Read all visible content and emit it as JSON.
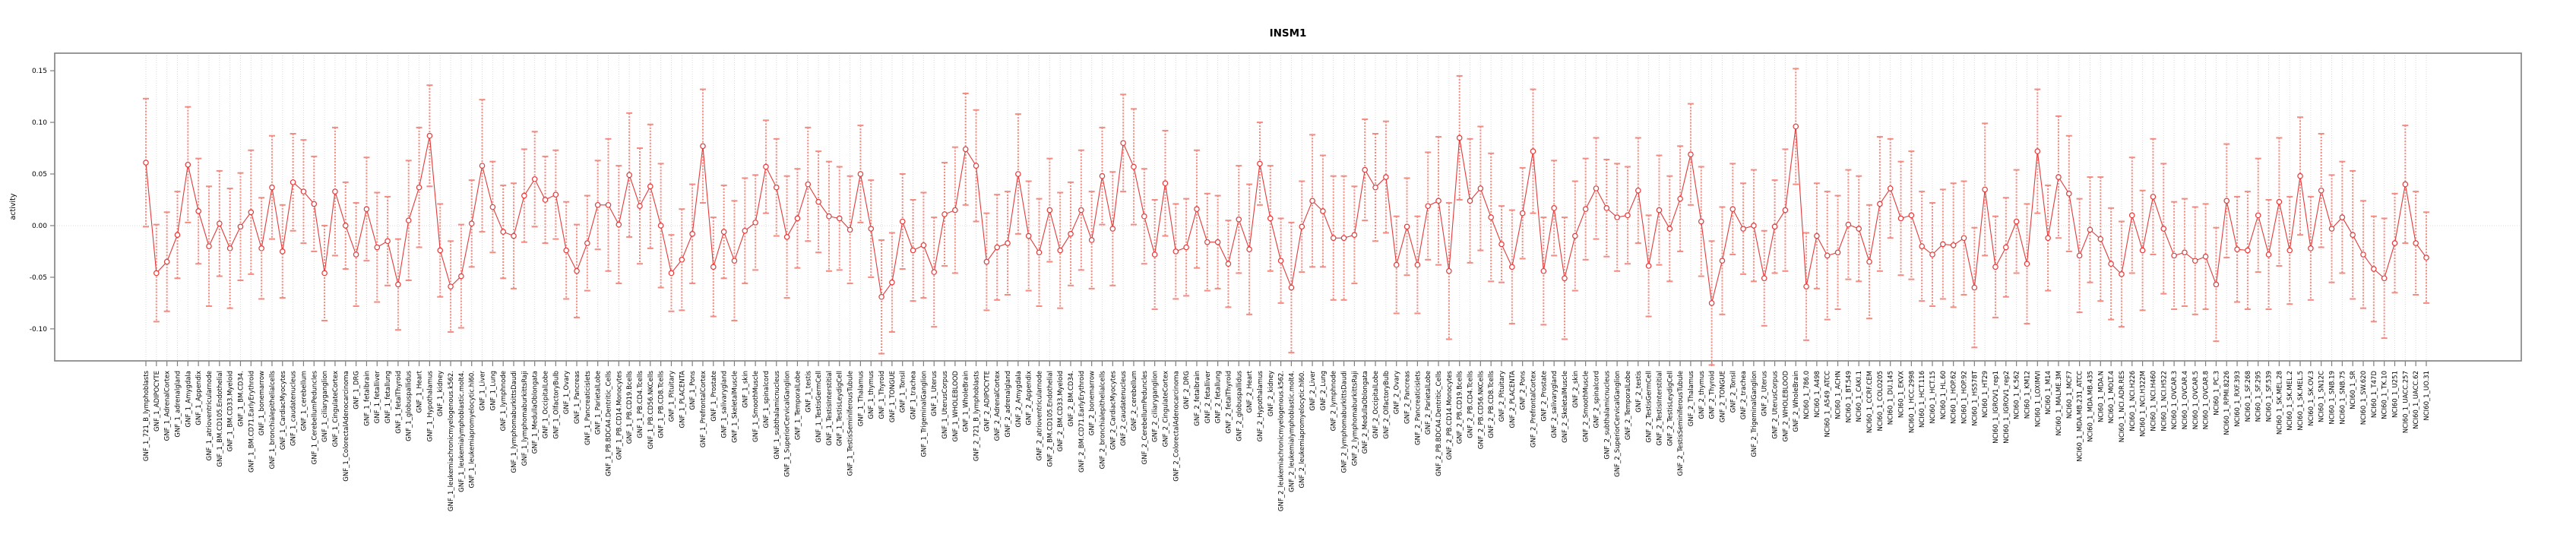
{
  "title": "INSM1",
  "ylabel": "activity",
  "chart_data": {
    "type": "line",
    "title": "INSM1",
    "xlabel": "",
    "ylabel": "activity",
    "ylim": [
      -0.131,
      0.167
    ],
    "yticks": [
      -0.1,
      -0.05,
      0.0,
      0.05,
      0.1,
      0.15
    ],
    "grid": "dotted vertical gridline at every category; dotted horizontal line at y=0",
    "legend": "none",
    "marker": "open-circle",
    "error_bars": true,
    "colors": {
      "point": "#e23b3b",
      "line": "#e8474040",
      "error_bar": "#f28b82",
      "grid": "#d9d9d9",
      "box": "#7f7f7f",
      "text": "#000000"
    },
    "categories": [
      "GNF_1_721_B_lymphoblasts",
      "GNF_1_ADIPOCYTE",
      "GNF_1_AdrenalCortex",
      "GNF_1_adrenalgland",
      "GNF_1_Amygdala",
      "GNF_1_Appendix",
      "GNF_1_atrioventricularnode",
      "GNF_1_BM.CD105.Endothelial",
      "GNF_1_BM.CD33.Myeloid",
      "GNF_1_BM.CD34.",
      "GNF_1_BM.CD71.EarlyErythroid",
      "GNF_1_bonemarrow",
      "GNF_1_bronchialepithelialcells",
      "GNF_1_CardiacMyocytes",
      "GNF_1_caudatenucleus",
      "GNF_1_cerebellum",
      "GNF_1_CerebellumPeduncles",
      "GNF_1_ciliaryganglion",
      "GNF_1_CingulateCortex",
      "GNF_1_ColorectalAdenocarcinoma",
      "GNF_1_DRG",
      "GNF_1_fetalbrain",
      "GNF_1_fetalliver",
      "GNF_1_fetallung",
      "GNF_1_fetalThyroid",
      "GNF_1_globuspallidus",
      "GNF_1_Heart",
      "GNF_1_Hypothalamus",
      "GNF_1_kidney",
      "GNF_1_leukemiachronicmyelogenous.k562.",
      "GNF_1_leukemialymphoblastic.molt4.",
      "GNF_1_leukemiapromyelocytic.hl60.",
      "GNF_1_Liver",
      "GNF_1_Lung",
      "GNF_1_lymphnode",
      "GNF_1_lymphomaburkittsDaudi",
      "GNF_1_lymphomaburkittsRaji",
      "GNF_1_MedullaOblongata",
      "GNF_1_OccipitalLobe",
      "GNF_1_OlfactoryBulb",
      "GNF_1_Ovary",
      "GNF_1_Pancreas",
      "GNF_1_Pancreaticislets",
      "GNF_1_ParietalLobe",
      "GNF_1_PB.BDCA4.Dentritic_Cells",
      "GNF_1_PB.CD14.Monocytes",
      "GNF_1_PB.CD19.Bcells",
      "GNF_1_PB.CD4.Tcells",
      "GNF_1_PB.CD56.NKCells",
      "GNF_1_PB.CD8.Tcells",
      "GNF_1_Pituitary",
      "GNF_1_PLACENTA",
      "GNF_1_Pons",
      "GNF_1_PrefrontalCortex",
      "GNF_1_Prostate",
      "GNF_1_salivarygland",
      "GNF_1_SkeletalMuscle",
      "GNF_1_skin",
      "GNF_1_SmoothMuscle",
      "GNF_1_spinalcord",
      "GNF_1_subthalamicnucleus",
      "GNF_1_SuperiorCervicalGanglion",
      "GNF_1_TemporalLobe",
      "GNF_1_testis",
      "GNF_1_TestisGermCell",
      "GNF_1_TestisInterstitial",
      "GNF_1_TestisLeydigCell",
      "GNF_1_TestisSeminiferousTubule",
      "GNF_1_Thalamus",
      "GNF_1_thymus",
      "GNF_1_Thyroid",
      "GNF_1_TONGUE",
      "GNF_1_Tonsil",
      "GNF_1_trachea",
      "GNF_1_TrigeminalGanglion",
      "GNF_1_Uterus",
      "GNF_1_UterusCorpus",
      "GNF_1_WHOLEBLOOD",
      "GNF_1_WholeBrain",
      "GNF_2_721_B_lymphoblasts",
      "GNF_2_ADIPOCYTE",
      "GNF_2_AdrenalCortex",
      "GNF_2_adrenalgland",
      "GNF_2_Amygdala",
      "GNF_2_Appendix",
      "GNF_2_atrioventricularnode",
      "GNF_2_BM.CD105.Endothelial",
      "GNF_2_BM.CD33.Myeloid",
      "GNF_2_BM.CD34.",
      "GNF_2_BM.CD71.EarlyErythroid",
      "GNF_2_bonemarrow",
      "GNF_2_bronchialepithelialcells",
      "GNF_2_CardiacMyocytes",
      "GNF_2_caudatenucleus",
      "GNF_2_cerebellum",
      "GNF_2_CerebellumPeduncles",
      "GNF_2_ciliaryganglion",
      "GNF_2_CingulateCortex",
      "GNF_2_ColorectalAdenocarcinoma",
      "GNF_2_DRG",
      "GNF_2_fetalbrain",
      "GNF_2_fetalliver",
      "GNF_2_fetallung",
      "GNF_2_fetalThyroid",
      "GNF_2_globuspallidus",
      "GNF_2_Heart",
      "GNF_2_Hypothalamus",
      "GNF_2_kidney",
      "GNF_2_leukemiachronicmyelogenous.k562.",
      "GNF_2_leukemialymphoblastic.molt4.",
      "GNF_2_leukemiapromyelocytic.hl60.",
      "GNF_2_Liver",
      "GNF_2_Lung",
      "GNF_2_lymphnode",
      "GNF_2_lymphomaburkittsDaudi",
      "GNF_2_lymphomaburkittsRaji",
      "GNF_2_MedullaOblongata",
      "GNF_2_OccipitalLobe",
      "GNF_2_OlfactoryBulb",
      "GNF_2_Ovary",
      "GNF_2_Pancreas",
      "GNF_2_Pancreaticislets",
      "GNF_2_ParietalLobe",
      "GNF_2_PB.BDCA4.Dentritic_Cells",
      "GNF_2_PB.CD14.Monocytes",
      "GNF_2_PB.CD19.Bcells",
      "GNF_2_PB.CD4.Tcells",
      "GNF_2_PB.CD56.NKCells",
      "GNF_2_PB.CD8.Tcells",
      "GNF_2_Pituitary",
      "GNF_2_PLACENTA",
      "GNF_2_Pons",
      "GNF_2_PrefrontalCortex",
      "GNF_2_Prostate",
      "GNF_2_salivarygland",
      "GNF_2_SkeletalMuscle",
      "GNF_2_skin",
      "GNF_2_SmoothMuscle",
      "GNF_2_spinalcord",
      "GNF_2_subthalamicnucleus",
      "GNF_2_SuperiorCervicalGanglion",
      "GNF_2_TemporalLobe",
      "GNF_2_testis",
      "GNF_2_TestisGermCell",
      "GNF_2_TestisInterstitial",
      "GNF_2_TestisLeydigCell",
      "GNF_2_TestisSeminiferousTubule",
      "GNF_2_Thalamus",
      "GNF_2_thymus",
      "GNF_2_Thyroid",
      "GNF_2_TONGUE",
      "GNF_2_Tonsil",
      "GNF_2_trachea",
      "GNF_2_TrigeminalGanglion",
      "GNF_2_Uterus",
      "GNF_2_UterusCorpus",
      "GNF_2_WHOLEBLOOD",
      "GNF_2_WholeBrain",
      "NCI60_1_786.0",
      "NCI60_1_A498",
      "NCI60_1_A549_ATCC",
      "NCI60_1_ACHN",
      "NCI60_1_BT.549",
      "NCI60_1_CAKI.1",
      "NCI60_1_CCRF.CEM",
      "NCI60_1_COLO205",
      "NCI60_1_DU.145",
      "NCI60_1_EKVX",
      "NCI60_1_HCC.2998",
      "NCI60_1_HCT.116",
      "NCI60_1_HCT.15",
      "NCI60_1_HL.60",
      "NCI60_1_HOP.62",
      "NCI60_1_HOP.92",
      "NCI60_1_HS578T",
      "NCI60_1_HT29",
      "NCI60_1_IGROV1_rep1",
      "NCI60_1_IGROV1_rep2",
      "NCI60_1_K.562",
      "NCI60_1_KM12",
      "NCI60_1_LOXIMVI",
      "NCI60_1_M14",
      "NCI60_1_MALME.3M",
      "NCI60_1_MCF7",
      "NCI60_1_MDA.MB.231_ATCC",
      "NCI60_1_MDA.MB.435",
      "NCI60_1_MDA.N",
      "NCI60_1_MOLT.4",
      "NCI60_1_NCI.ADR.RES",
      "NCI60_1_NCI.H226",
      "NCI60_1_NCI.H322M",
      "NCI60_1_NCI.H460",
      "NCI60_1_NCI.H522",
      "NCI60_1_OVCAR.3",
      "NCI60_1_OVCAR.4",
      "NCI60_1_OVCAR.5",
      "NCI60_1_OVCAR.8",
      "NCI60_1_PC.3",
      "NCI60_1_RPMI.8226",
      "NCI60_1_RXF.393",
      "NCI60_1_SF.268",
      "NCI60_1_SF.295",
      "NCI60_1_SF.539",
      "NCI60_1_SK.MEL.28",
      "NCI60_1_SK.MEL.2",
      "NCI60_1_SK.MEL.5",
      "NCI60_1_SK.OV.3",
      "NCI60_1_SN12C",
      "NCI60_1_SNB.19",
      "NCI60_1_SNB.75",
      "NCI60_1_SR",
      "NCI60_1_SW.620",
      "NCI60_1_T47D",
      "NCI60_1_TK.10",
      "NCI60_1_U251",
      "NCI60_1_UACC.257",
      "NCI60_1_UACC.62",
      "NCI60_1_UO.31"
    ],
    "values": [
      0.061,
      -0.046,
      -0.035,
      -0.009,
      0.059,
      0.014,
      -0.02,
      0.002,
      -0.022,
      -0.001,
      0.013,
      -0.022,
      0.037,
      -0.025,
      0.042,
      0.033,
      0.021,
      -0.046,
      0.033,
      0.0,
      -0.028,
      0.016,
      -0.021,
      -0.015,
      -0.057,
      0.005,
      0.037,
      0.087,
      -0.024,
      -0.059,
      -0.049,
      0.002,
      0.058,
      0.018,
      -0.006,
      -0.01,
      0.029,
      0.045,
      0.025,
      0.03,
      -0.024,
      -0.044,
      -0.017,
      0.02,
      0.02,
      0.001,
      0.049,
      0.019,
      0.038,
      0.0,
      -0.046,
      -0.033,
      -0.008,
      0.077,
      -0.04,
      -0.006,
      -0.034,
      -0.005,
      0.003,
      0.057,
      0.037,
      -0.011,
      0.007,
      0.04,
      0.023,
      0.009,
      0.007,
      -0.004,
      0.05,
      -0.003,
      -0.069,
      -0.055,
      0.004,
      -0.024,
      -0.019,
      -0.045,
      0.011,
      0.015,
      0.074,
      0.058,
      -0.035,
      -0.021,
      -0.017,
      0.05,
      -0.01,
      -0.026,
      0.015,
      -0.024,
      -0.008,
      0.015,
      -0.014,
      0.048,
      -0.003,
      0.08,
      0.057,
      0.009,
      -0.028,
      0.041,
      -0.025,
      -0.021,
      0.016,
      -0.016,
      -0.016,
      -0.037,
      0.006,
      -0.023,
      0.06,
      0.007,
      -0.034,
      -0.06,
      -0.001,
      0.024,
      0.014,
      -0.012,
      -0.012,
      -0.009,
      0.054,
      0.037,
      0.047,
      -0.038,
      -0.001,
      -0.038,
      0.019,
      0.024,
      -0.044,
      0.085,
      0.024,
      0.036,
      0.008,
      -0.018,
      -0.04,
      0.012,
      0.072,
      -0.044,
      0.017,
      -0.051,
      -0.01,
      0.016,
      0.036,
      0.017,
      0.008,
      0.01,
      0.034,
      -0.039,
      0.015,
      -0.003,
      0.026,
      0.069,
      0.004,
      -0.075,
      -0.034,
      0.016,
      -0.003,
      0.0,
      -0.051,
      -0.001,
      0.015,
      0.096,
      -0.059,
      -0.01,
      -0.029,
      -0.026,
      0.001,
      -0.003,
      -0.035,
      0.021,
      0.036,
      0.007,
      0.01,
      -0.02,
      -0.028,
      -0.018,
      -0.019,
      -0.012,
      -0.06,
      0.035,
      -0.04,
      -0.021,
      0.004,
      -0.037,
      0.072,
      -0.012,
      0.047,
      0.031,
      -0.029,
      -0.004,
      -0.013,
      -0.037,
      -0.047,
      0.01,
      -0.024,
      0.028,
      -0.003,
      -0.029,
      -0.026,
      -0.034,
      -0.03,
      -0.057,
      0.024,
      -0.023,
      -0.024,
      0.01,
      -0.028,
      0.023,
      -0.024,
      0.048,
      -0.022,
      0.034,
      -0.003,
      0.008,
      -0.009,
      -0.028,
      -0.042,
      -0.051,
      -0.017,
      0.04,
      -0.017,
      -0.031
    ],
    "errors": [
      0.062,
      0.047,
      0.048,
      0.042,
      0.056,
      0.051,
      0.058,
      0.051,
      0.058,
      0.052,
      0.06,
      0.049,
      0.05,
      0.045,
      0.047,
      0.05,
      0.046,
      0.046,
      0.062,
      0.042,
      0.05,
      0.05,
      0.053,
      0.043,
      0.044,
      0.058,
      0.058,
      0.049,
      0.045,
      0.044,
      0.05,
      0.042,
      0.064,
      0.044,
      0.045,
      0.051,
      0.045,
      0.046,
      0.042,
      0.043,
      0.047,
      0.045,
      0.046,
      0.043,
      0.064,
      0.057,
      0.06,
      0.056,
      0.06,
      0.06,
      0.037,
      0.049,
      0.048,
      0.055,
      0.048,
      0.045,
      0.058,
      0.051,
      0.046,
      0.045,
      0.047,
      0.059,
      0.048,
      0.055,
      0.049,
      0.053,
      0.05,
      0.052,
      0.047,
      0.047,
      0.055,
      0.048,
      0.046,
      0.049,
      0.051,
      0.053,
      0.05,
      0.061,
      0.054,
      0.054,
      0.047,
      0.051,
      0.05,
      0.058,
      0.053,
      0.052,
      0.05,
      0.056,
      0.05,
      0.058,
      0.047,
      0.047,
      0.055,
      0.047,
      0.056,
      0.046,
      0.053,
      0.051,
      0.046,
      0.047,
      0.057,
      0.047,
      0.045,
      0.042,
      0.052,
      0.063,
      0.04,
      0.051,
      0.041,
      0.063,
      0.044,
      0.064,
      0.054,
      0.06,
      0.06,
      0.047,
      0.049,
      0.052,
      0.054,
      0.047,
      0.047,
      0.047,
      0.052,
      0.062,
      0.066,
      0.06,
      0.06,
      0.06,
      0.062,
      0.037,
      0.055,
      0.044,
      0.06,
      0.052,
      0.046,
      0.059,
      0.053,
      0.049,
      0.049,
      0.047,
      0.052,
      0.047,
      0.051,
      0.049,
      0.053,
      0.051,
      0.051,
      0.049,
      0.053,
      0.06,
      0.052,
      0.044,
      0.044,
      0.054,
      0.046,
      0.045,
      0.059,
      0.056,
      0.052,
      0.051,
      0.062,
      0.055,
      0.053,
      0.051,
      0.055,
      0.065,
      0.048,
      0.055,
      0.062,
      0.053,
      0.05,
      0.053,
      0.06,
      0.055,
      0.058,
      0.064,
      0.049,
      0.048,
      0.05,
      0.058,
      0.06,
      0.051,
      0.059,
      0.056,
      0.055,
      0.051,
      0.06,
      0.054,
      0.051,
      0.056,
      0.058,
      0.056,
      0.063,
      0.052,
      0.052,
      0.052,
      0.051,
      0.055,
      0.055,
      0.051,
      0.057,
      0.055,
      0.053,
      0.062,
      0.052,
      0.057,
      0.05,
      0.055,
      0.052,
      0.054,
      0.062,
      0.052,
      0.051,
      0.058,
      0.048,
      0.057,
      0.05,
      0.044
    ]
  }
}
